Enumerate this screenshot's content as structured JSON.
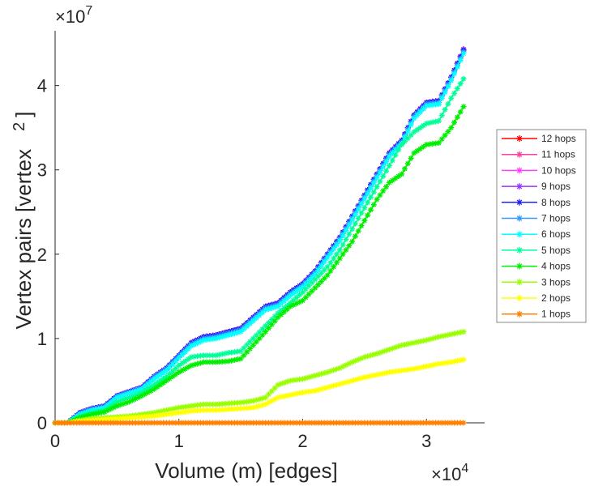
{
  "chart_data": {
    "type": "line",
    "xlabel": "Volume (m) [edges]",
    "ylabel_main": "Vertex pairs [vertex",
    "ylabel_exp": "2",
    "ylabel_end": "]",
    "x_multiplier": {
      "base": "×10",
      "exp": "4"
    },
    "y_multiplier": {
      "base": "×10",
      "exp": "7"
    },
    "xlim": [
      0,
      3.47
    ],
    "ylim": [
      0,
      4.65
    ],
    "xticks": [
      0,
      1,
      2,
      3
    ],
    "xtick_labels": [
      "0",
      "1",
      "2",
      "3"
    ],
    "yticks": [
      0,
      1,
      2,
      3,
      4
    ],
    "ytick_labels": [
      "0",
      "1",
      "2",
      "3",
      "4"
    ],
    "grid": false,
    "legend_position": "right-outside",
    "x": [
      0,
      0.1,
      0.2,
      0.3,
      0.4,
      0.5,
      0.6,
      0.7,
      0.8,
      0.9,
      1.0,
      1.1,
      1.2,
      1.3,
      1.4,
      1.5,
      1.6,
      1.7,
      1.8,
      1.9,
      2.0,
      2.1,
      2.2,
      2.3,
      2.4,
      2.5,
      2.6,
      2.7,
      2.8,
      2.9,
      3.0,
      3.1,
      3.2,
      3.3
    ],
    "series": [
      {
        "name": "12 hops",
        "color": "#ff0000",
        "values": [
          0,
          0,
          0.12,
          0.17,
          0.2,
          0.32,
          0.37,
          0.42,
          0.55,
          0.65,
          0.8,
          0.95,
          1.02,
          1.04,
          1.08,
          1.12,
          1.25,
          1.38,
          1.42,
          1.55,
          1.65,
          1.8,
          2.0,
          2.2,
          2.45,
          2.7,
          2.95,
          3.2,
          3.35,
          3.65,
          3.8,
          3.82,
          4.1,
          4.43
        ]
      },
      {
        "name": "11 hops",
        "color": "#ff3fa0",
        "values": [
          0,
          0,
          0.12,
          0.17,
          0.2,
          0.32,
          0.37,
          0.42,
          0.55,
          0.65,
          0.8,
          0.95,
          1.02,
          1.04,
          1.08,
          1.12,
          1.25,
          1.38,
          1.42,
          1.55,
          1.65,
          1.8,
          2.0,
          2.2,
          2.45,
          2.7,
          2.95,
          3.2,
          3.35,
          3.65,
          3.8,
          3.82,
          4.1,
          4.43
        ]
      },
      {
        "name": "10 hops",
        "color": "#ff3fff",
        "values": [
          0,
          0,
          0.12,
          0.17,
          0.2,
          0.32,
          0.37,
          0.42,
          0.55,
          0.65,
          0.8,
          0.95,
          1.02,
          1.04,
          1.08,
          1.12,
          1.25,
          1.38,
          1.42,
          1.55,
          1.65,
          1.8,
          2.0,
          2.2,
          2.45,
          2.7,
          2.95,
          3.2,
          3.35,
          3.65,
          3.8,
          3.82,
          4.1,
          4.43
        ]
      },
      {
        "name": "9 hops",
        "color": "#9933ff",
        "values": [
          0,
          0,
          0.12,
          0.17,
          0.2,
          0.32,
          0.37,
          0.42,
          0.55,
          0.65,
          0.8,
          0.95,
          1.02,
          1.04,
          1.08,
          1.12,
          1.25,
          1.38,
          1.42,
          1.55,
          1.65,
          1.8,
          2.0,
          2.2,
          2.45,
          2.7,
          2.95,
          3.2,
          3.35,
          3.65,
          3.8,
          3.82,
          4.1,
          4.43
        ]
      },
      {
        "name": "8 hops",
        "color": "#2020ff",
        "values": [
          0,
          0,
          0.12,
          0.17,
          0.2,
          0.32,
          0.37,
          0.42,
          0.55,
          0.65,
          0.8,
          0.95,
          1.02,
          1.04,
          1.08,
          1.12,
          1.25,
          1.38,
          1.42,
          1.55,
          1.65,
          1.8,
          2.0,
          2.2,
          2.45,
          2.7,
          2.95,
          3.2,
          3.35,
          3.65,
          3.8,
          3.82,
          4.1,
          4.42
        ]
      },
      {
        "name": "7 hops",
        "color": "#3399ff",
        "values": [
          0,
          0,
          0.11,
          0.16,
          0.19,
          0.31,
          0.36,
          0.41,
          0.54,
          0.64,
          0.79,
          0.93,
          1.0,
          1.02,
          1.06,
          1.1,
          1.23,
          1.36,
          1.4,
          1.53,
          1.63,
          1.78,
          1.98,
          2.18,
          2.43,
          2.68,
          2.93,
          3.18,
          3.33,
          3.63,
          3.78,
          3.8,
          4.08,
          4.4
        ]
      },
      {
        "name": "6 hops",
        "color": "#00ffff",
        "values": [
          0,
          0,
          0.1,
          0.15,
          0.18,
          0.3,
          0.35,
          0.4,
          0.52,
          0.62,
          0.77,
          0.91,
          0.98,
          1.0,
          1.04,
          1.08,
          1.21,
          1.34,
          1.38,
          1.51,
          1.61,
          1.76,
          1.96,
          2.16,
          2.41,
          2.66,
          2.91,
          3.16,
          3.31,
          3.61,
          3.76,
          3.78,
          4.06,
          4.38
        ]
      },
      {
        "name": "5 hops",
        "color": "#00ff99",
        "values": [
          0,
          0,
          0.08,
          0.12,
          0.15,
          0.25,
          0.3,
          0.36,
          0.45,
          0.55,
          0.68,
          0.78,
          0.8,
          0.8,
          0.83,
          0.85,
          1.0,
          1.15,
          1.3,
          1.42,
          1.55,
          1.7,
          1.85,
          2.05,
          2.3,
          2.55,
          2.8,
          3.05,
          3.3,
          3.45,
          3.55,
          3.58,
          3.85,
          4.08
        ]
      },
      {
        "name": "4 hops",
        "color": "#00ee00",
        "values": [
          0,
          0,
          0.06,
          0.1,
          0.13,
          0.2,
          0.25,
          0.32,
          0.4,
          0.5,
          0.6,
          0.68,
          0.72,
          0.72,
          0.73,
          0.76,
          0.92,
          1.08,
          1.25,
          1.38,
          1.45,
          1.6,
          1.75,
          1.95,
          2.15,
          2.4,
          2.65,
          2.85,
          2.95,
          3.2,
          3.3,
          3.32,
          3.5,
          3.75
        ]
      },
      {
        "name": "3 hops",
        "color": "#99ff00",
        "values": [
          0,
          0,
          0.03,
          0.05,
          0.06,
          0.07,
          0.08,
          0.1,
          0.12,
          0.15,
          0.18,
          0.2,
          0.22,
          0.22,
          0.23,
          0.24,
          0.26,
          0.3,
          0.45,
          0.5,
          0.52,
          0.56,
          0.6,
          0.65,
          0.72,
          0.78,
          0.82,
          0.87,
          0.92,
          0.95,
          0.98,
          1.02,
          1.05,
          1.08
        ]
      },
      {
        "name": "2 hops",
        "color": "#ffff00",
        "values": [
          0,
          0,
          0.02,
          0.03,
          0.04,
          0.05,
          0.06,
          0.07,
          0.08,
          0.1,
          0.12,
          0.14,
          0.15,
          0.15,
          0.16,
          0.17,
          0.18,
          0.22,
          0.3,
          0.33,
          0.36,
          0.38,
          0.42,
          0.46,
          0.5,
          0.54,
          0.57,
          0.6,
          0.62,
          0.64,
          0.67,
          0.7,
          0.72,
          0.75
        ]
      },
      {
        "name": "1 hops",
        "color": "#ff8000",
        "values": [
          0,
          0,
          0,
          0,
          0,
          0,
          0,
          0,
          0,
          0,
          0,
          0,
          0,
          0,
          0,
          0,
          0,
          0,
          0,
          0,
          0,
          0,
          0,
          0,
          0,
          0,
          0,
          0,
          0,
          0,
          0,
          0,
          0,
          0
        ]
      }
    ]
  }
}
